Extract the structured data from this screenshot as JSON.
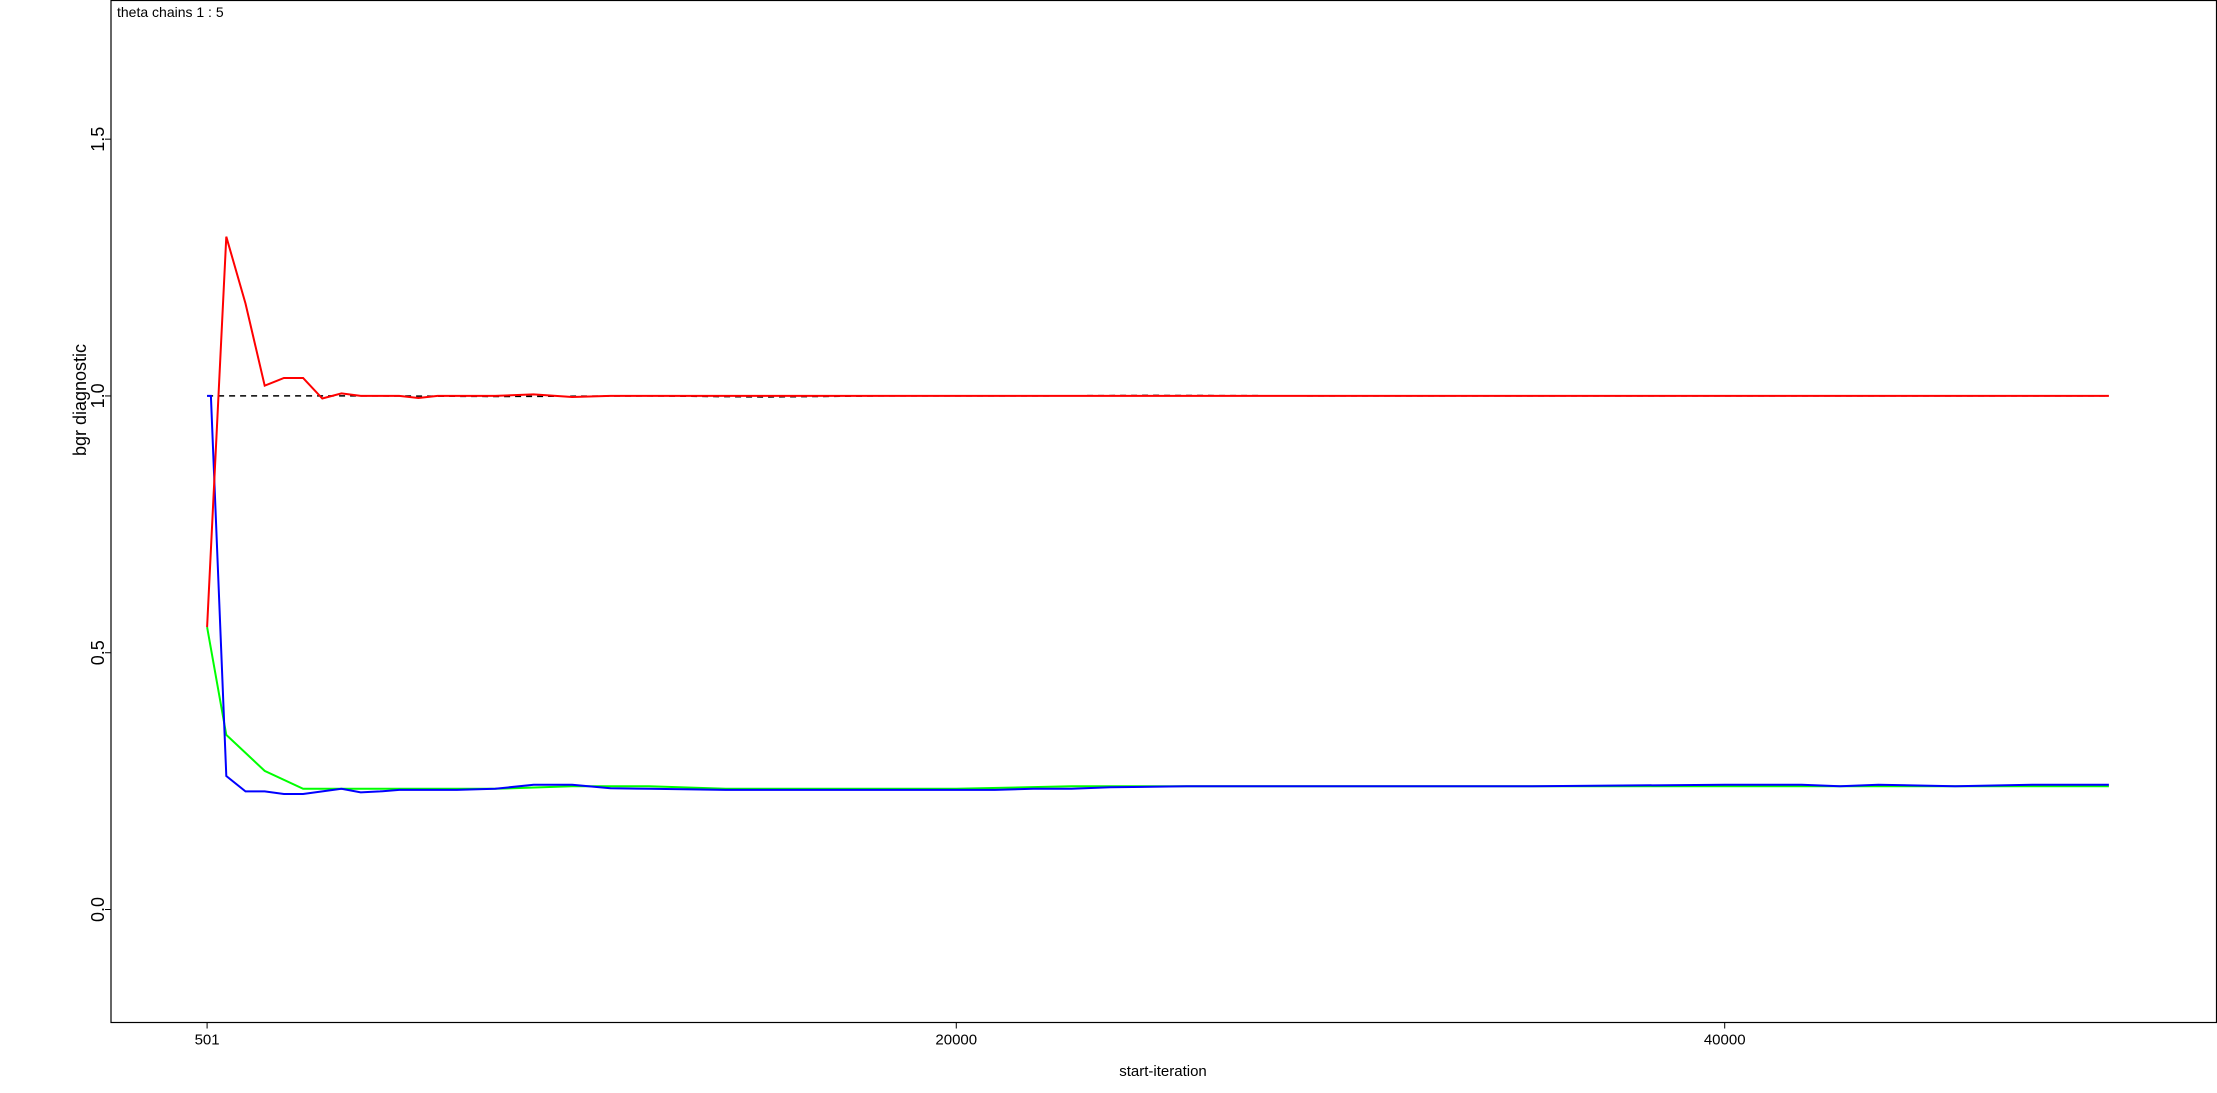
{
  "chart_data": {
    "type": "line",
    "title": "theta chains 1 : 5",
    "xlabel": "start-iteration",
    "ylabel": "bgr diagnostic",
    "xlim": [
      -2000,
      52800
    ],
    "ylim": [
      -0.22,
      1.77
    ],
    "xticks": [
      501,
      20000,
      40000
    ],
    "xtick_labels": [
      "501",
      "20000",
      "40000"
    ],
    "yticks": [
      0.0,
      0.5,
      1.0,
      1.5
    ],
    "ytick_labels": [
      "0.0",
      "0.5",
      "1.0",
      "1.5"
    ],
    "grid": false,
    "legend": "none",
    "series": [
      {
        "color": "#000000",
        "dash": "6,5",
        "x": [
          501,
          5000,
          8000,
          12000,
          15000,
          18000,
          22000,
          25000,
          30000,
          40000,
          50000
        ],
        "values": [
          1.0,
          1.0,
          0.999,
          1.0,
          0.998,
          1.0,
          1.0,
          1.001,
          1.0,
          1.0,
          1.0
        ]
      },
      {
        "color": "#00ff00",
        "x": [
          501,
          1000,
          2000,
          3000,
          4000,
          5000,
          6000,
          8000,
          10000,
          12000,
          14000,
          20000,
          23000,
          25000,
          28000,
          35000,
          40000,
          45000,
          50000
        ],
        "values": [
          0.55,
          0.34,
          0.27,
          0.235,
          0.235,
          0.235,
          0.235,
          0.235,
          0.24,
          0.24,
          0.235,
          0.235,
          0.24,
          0.24,
          0.24,
          0.24,
          0.24,
          0.24,
          0.24
        ]
      },
      {
        "color": "#0000ff",
        "x": [
          501,
          600,
          1000,
          1500,
          2000,
          2500,
          3000,
          3500,
          4000,
          4500,
          5000,
          5500,
          6000,
          7000,
          8000,
          9000,
          10000,
          11000,
          12000,
          14000,
          16000,
          18000,
          20000,
          21000,
          22000,
          23000,
          24000,
          26000,
          28000,
          30000,
          35000,
          40000,
          42000,
          43000,
          44000,
          46000,
          48000,
          50000
        ],
        "values": [
          1.0,
          1.0,
          0.26,
          0.23,
          0.23,
          0.225,
          0.225,
          0.23,
          0.235,
          0.228,
          0.23,
          0.233,
          0.233,
          0.233,
          0.235,
          0.243,
          0.243,
          0.236,
          0.235,
          0.233,
          0.233,
          0.233,
          0.233,
          0.233,
          0.235,
          0.235,
          0.238,
          0.24,
          0.24,
          0.24,
          0.24,
          0.243,
          0.243,
          0.24,
          0.243,
          0.24,
          0.243,
          0.243
        ]
      },
      {
        "color": "#ff0000",
        "x": [
          501,
          1000,
          1500,
          2000,
          2500,
          3000,
          3500,
          4000,
          4500,
          5000,
          5500,
          6000,
          6500,
          7000,
          8000,
          9000,
          10000,
          11000,
          12000,
          13000,
          14000,
          16000,
          18000,
          20000,
          22000,
          24000,
          26000,
          30000,
          40000,
          50000
        ],
        "values": [
          0.55,
          1.31,
          1.18,
          1.02,
          1.035,
          1.035,
          0.995,
          1.005,
          1.0,
          1.0,
          1.0,
          0.996,
          1.0,
          1.0,
          1.0,
          1.003,
          0.998,
          1.0,
          1.0,
          1.0,
          1.0,
          1.0,
          1.0,
          1.0,
          1.0,
          1.0,
          1.0,
          1.0,
          1.0,
          1.0
        ]
      }
    ]
  }
}
